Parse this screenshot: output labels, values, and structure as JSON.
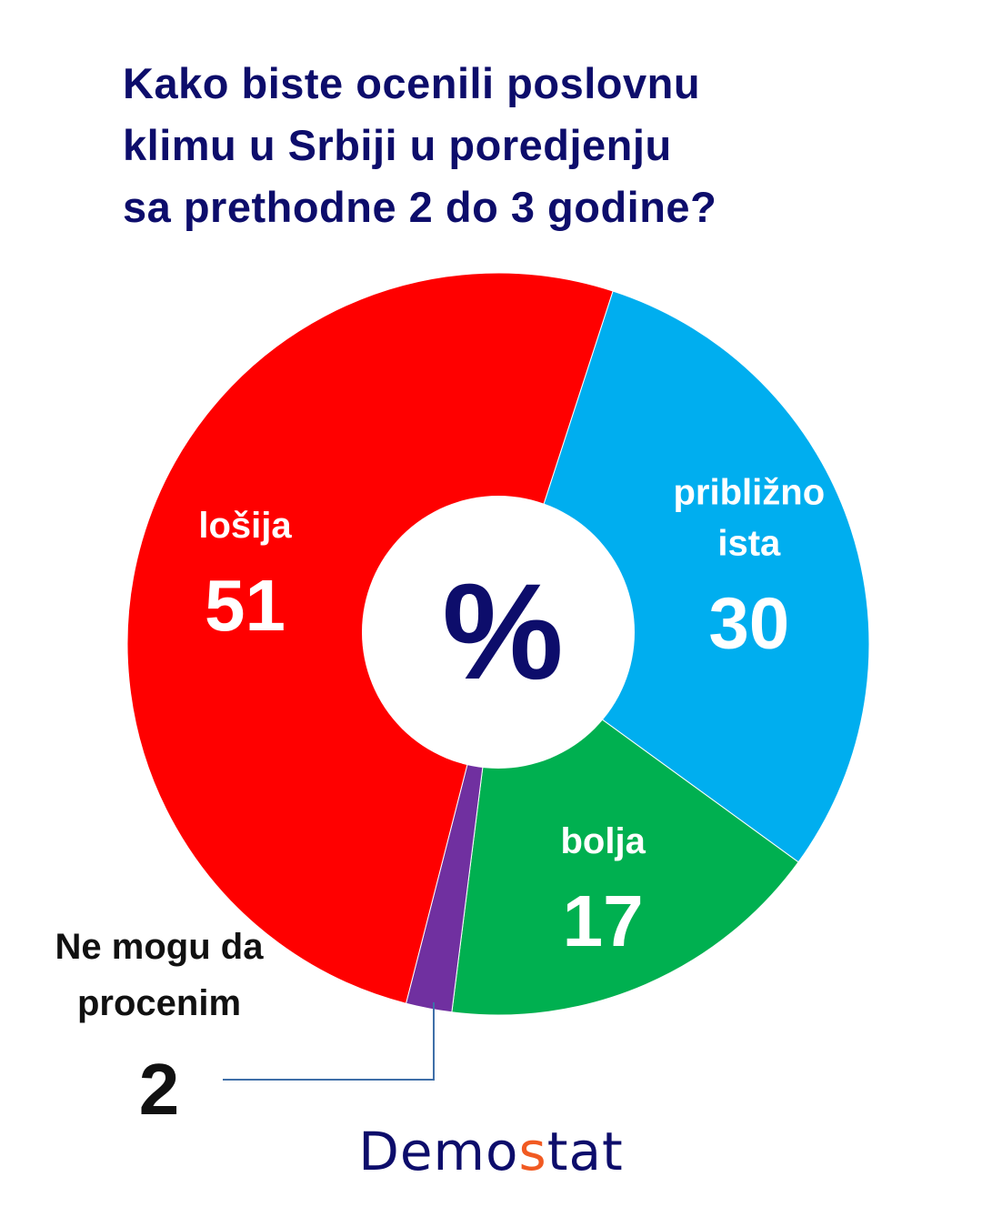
{
  "title_lines": [
    "Kako biste ocenili poslovnu",
    "klimu u Srbiji u poredjenju",
    "sa prethodne 2 do 3 godine?"
  ],
  "center_symbol": "%",
  "brand": {
    "part1": "Demo",
    "part2": "s",
    "part3": "tat",
    "accent_color": "#f15a22",
    "color": "#0d0d6b"
  },
  "chart_data": {
    "type": "pie",
    "donut": true,
    "title": "Kako biste ocenili poslovnu klimu u Srbiji u poredjenju sa prethodne 2 do 3 godine?",
    "unit": "%",
    "slices": [
      {
        "label": "približno ista",
        "label_lines": [
          "približno",
          "ista"
        ],
        "value": 30,
        "color": "#00aeef"
      },
      {
        "label": "bolja",
        "label_lines": [
          "bolja"
        ],
        "value": 17,
        "color": "#00b050"
      },
      {
        "label": "Ne mogu da procenim",
        "label_lines": [
          "Ne mogu da",
          "procenim"
        ],
        "value": 2,
        "color": "#7030a0"
      },
      {
        "label": "lošija",
        "label_lines": [
          "lošija"
        ],
        "value": 51,
        "color": "#ff0000"
      }
    ]
  }
}
